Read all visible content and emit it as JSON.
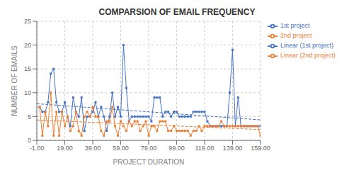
{
  "chart_data": {
    "type": "line",
    "title": "COMPARSION OF EMAIL FREQUENCY",
    "xlabel": "PROJECT DURATION",
    "ylabel": "NUMBER OF EMAILS",
    "xlim": [
      -1,
      159
    ],
    "ylim": [
      0,
      25
    ],
    "xticks": [
      {
        "value": -1,
        "label": "-1.00"
      },
      {
        "value": 19,
        "label": "19.00"
      },
      {
        "value": 39,
        "label": "39.00"
      },
      {
        "value": 59,
        "label": "59.00"
      },
      {
        "value": 79,
        "label": "79.00"
      },
      {
        "value": 99,
        "label": "99.00"
      },
      {
        "value": 119,
        "label": "119.00"
      },
      {
        "value": 139,
        "label": "139.00"
      },
      {
        "value": 159,
        "label": "159.00"
      }
    ],
    "yticks": [
      0,
      5,
      10,
      15,
      20,
      25
    ],
    "grid": true,
    "legend": "right",
    "series": [
      {
        "name": "1st project",
        "color": "#4472c4",
        "marker": "square",
        "line_style": "solid",
        "x": [
          1,
          3,
          5,
          7,
          9,
          11,
          13,
          15,
          17,
          19,
          21,
          23,
          25,
          27,
          29,
          31,
          33,
          35,
          37,
          39,
          41,
          43,
          45,
          47,
          49,
          51,
          53,
          55,
          57,
          59,
          61,
          63,
          65,
          67,
          69,
          71,
          73,
          75,
          77,
          79,
          81,
          83,
          85,
          87,
          89,
          91,
          93,
          95,
          97,
          99,
          101,
          103,
          105,
          107,
          109,
          111,
          113,
          115,
          117,
          119,
          121,
          123,
          125,
          127,
          129,
          131,
          133,
          135,
          137,
          139,
          141,
          143,
          145,
          147,
          149,
          151,
          153,
          155,
          157,
          159
        ],
        "values": [
          7,
          6,
          6,
          8,
          14,
          15,
          8,
          6,
          6,
          8,
          5,
          3,
          9,
          6,
          5,
          9,
          2,
          5,
          5,
          6,
          8,
          5,
          7,
          5,
          2,
          5,
          10,
          5,
          7,
          5,
          20,
          11,
          4,
          5,
          5,
          5,
          5,
          5,
          5,
          5,
          4,
          9,
          9,
          9,
          5,
          6,
          6,
          5,
          6,
          6,
          5,
          5,
          5,
          5,
          5,
          6,
          6,
          6,
          6,
          6,
          4,
          3,
          3,
          3,
          3,
          3,
          3,
          3,
          10,
          19,
          3,
          9,
          3,
          3,
          3,
          3,
          3,
          3,
          3,
          3
        ]
      },
      {
        "name": "2nd project",
        "color": "#ed7d31",
        "marker": "square",
        "line_style": "solid",
        "x": [
          1,
          3,
          5,
          7,
          9,
          11,
          13,
          15,
          17,
          19,
          21,
          23,
          25,
          27,
          29,
          31,
          33,
          35,
          37,
          39,
          41,
          43,
          45,
          47,
          49,
          51,
          53,
          55,
          57,
          59,
          61,
          63,
          65,
          67,
          69,
          71,
          73,
          75,
          77,
          79,
          81,
          83,
          85,
          87,
          89,
          91,
          93,
          95,
          97,
          99,
          101,
          103,
          105,
          107,
          109,
          111,
          113,
          115,
          117,
          119,
          121,
          123,
          125,
          127,
          129,
          131,
          133,
          135,
          137,
          139,
          141,
          143,
          145,
          147,
          149,
          151,
          153,
          155,
          157,
          159
        ],
        "values": [
          7,
          1,
          6,
          3,
          10,
          1,
          6,
          1,
          6,
          3,
          5,
          2,
          3,
          6,
          2,
          1,
          5,
          6,
          5,
          7,
          5,
          5,
          2,
          1,
          4,
          4,
          7,
          3,
          1,
          4,
          3,
          2,
          4,
          3,
          4,
          4,
          2,
          3,
          4,
          1,
          3,
          3,
          2,
          4,
          4,
          4,
          2,
          2,
          3,
          2,
          2,
          2,
          2,
          2,
          1,
          2,
          2,
          3,
          2,
          3,
          3,
          3,
          3,
          3,
          3,
          4,
          3,
          3,
          3,
          3,
          3,
          3,
          3,
          3,
          3,
          3,
          3,
          3,
          3,
          1
        ]
      },
      {
        "name": "Linear (1st project)",
        "color": "#4472c4",
        "marker": "none",
        "line_style": "dashed",
        "x": [
          -1,
          159
        ],
        "values": [
          7.6915,
          4.3009
        ]
      },
      {
        "name": "Linear (2nd project)",
        "color": "#ed7d31",
        "marker": "none",
        "line_style": "dashed",
        "x": [
          -1,
          159
        ],
        "values": [
          4.2826,
          2.2676
        ]
      }
    ]
  }
}
